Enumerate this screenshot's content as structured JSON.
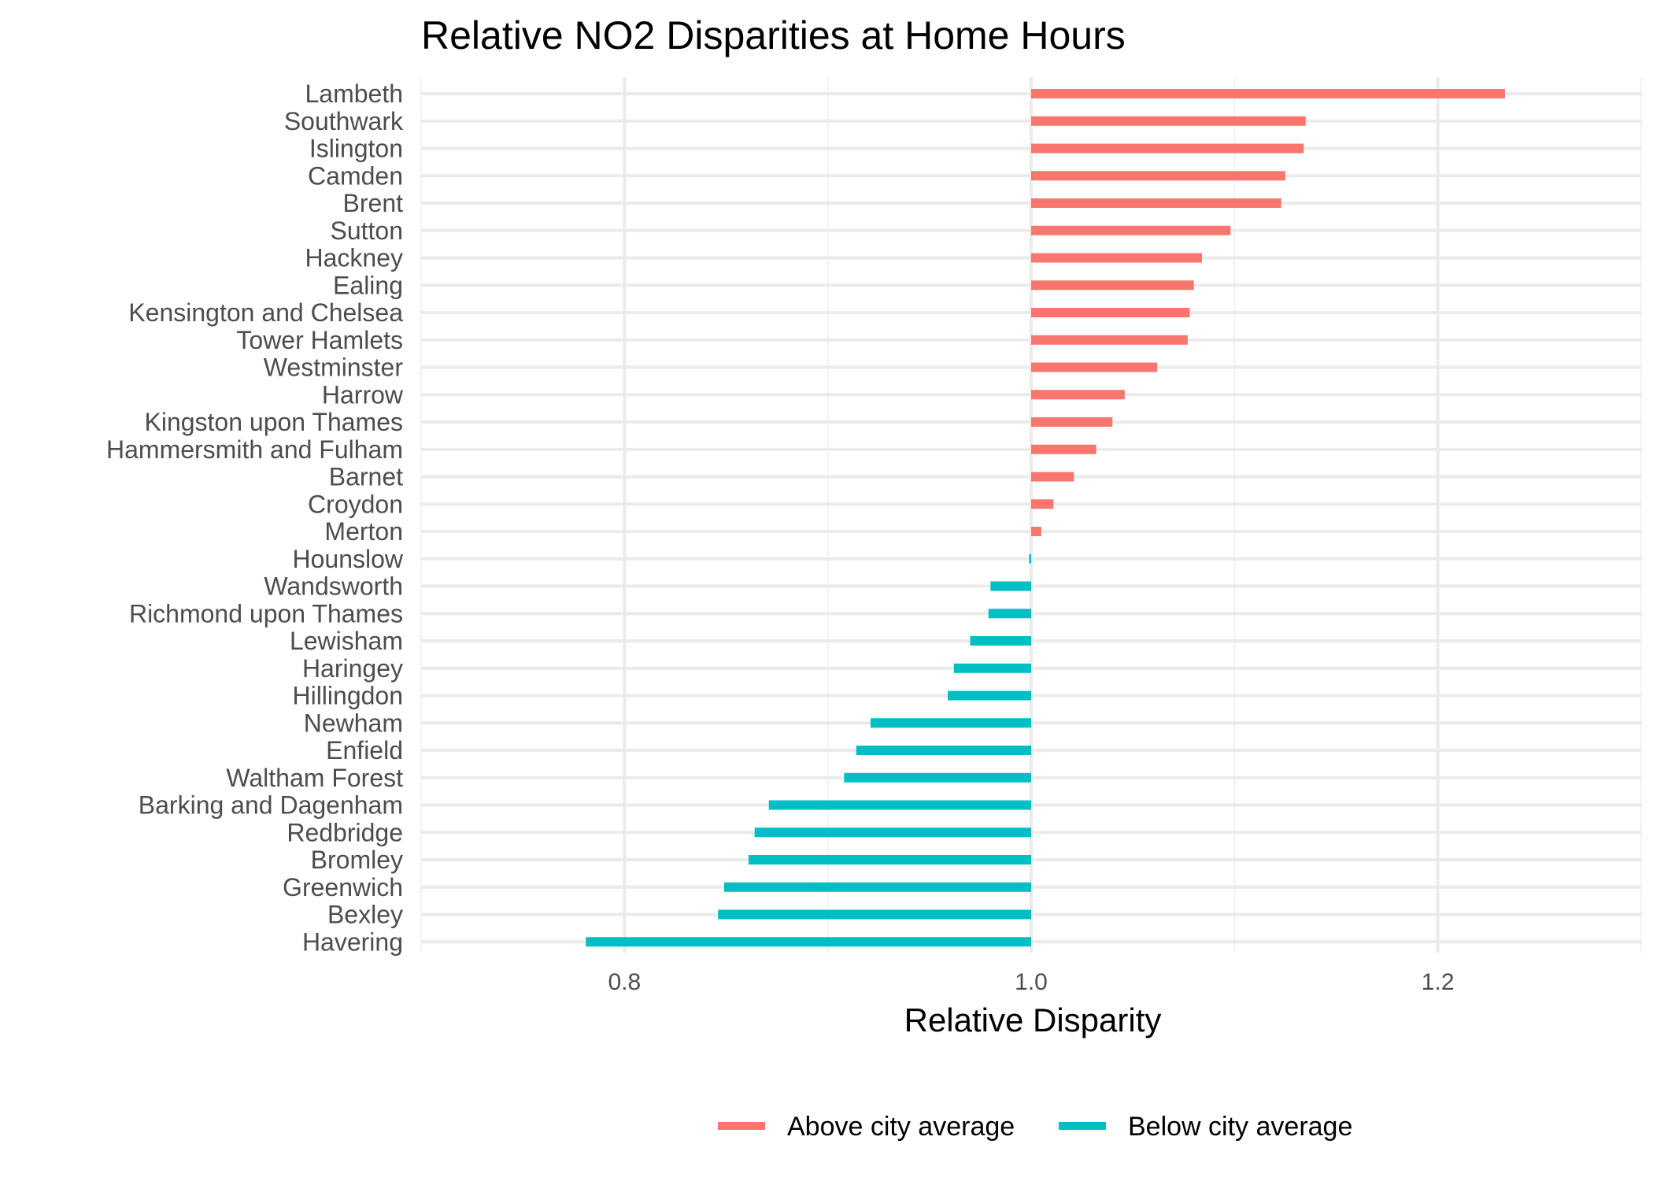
{
  "chart_data": {
    "type": "bar",
    "orientation": "horizontal",
    "title": "Relative NO2 Disparities at Home Hours",
    "xlabel": "Relative Disparity",
    "ylabel": "",
    "xlim": [
      0.7,
      1.3
    ],
    "baseline": 1.0,
    "x_ticks": [
      "0.8",
      "1.0",
      "1.2"
    ],
    "grid": true,
    "legend_position": "bottom",
    "categories": [
      "Lambeth",
      "Southwark",
      "Islington",
      "Camden",
      "Brent",
      "Sutton",
      "Hackney",
      "Ealing",
      "Kensington and Chelsea",
      "Tower Hamlets",
      "Westminster",
      "Harrow",
      "Kingston upon Thames",
      "Hammersmith and Fulham",
      "Barnet",
      "Croydon",
      "Merton",
      "Hounslow",
      "Wandsworth",
      "Richmond upon Thames",
      "Lewisham",
      "Haringey",
      "Hillingdon",
      "Newham",
      "Enfield",
      "Waltham Forest",
      "Barking and Dagenham",
      "Redbridge",
      "Bromley",
      "Greenwich",
      "Bexley",
      "Havering"
    ],
    "values": [
      1.233,
      1.135,
      1.134,
      1.125,
      1.123,
      1.098,
      1.084,
      1.08,
      1.078,
      1.077,
      1.062,
      1.046,
      1.04,
      1.032,
      1.021,
      1.011,
      1.005,
      0.999,
      0.98,
      0.979,
      0.97,
      0.962,
      0.959,
      0.921,
      0.914,
      0.908,
      0.871,
      0.864,
      0.861,
      0.849,
      0.846,
      0.781
    ],
    "series": [
      {
        "name": "Above city average",
        "color": "#F8766D"
      },
      {
        "name": "Below city average",
        "color": "#00BFC4"
      }
    ]
  }
}
